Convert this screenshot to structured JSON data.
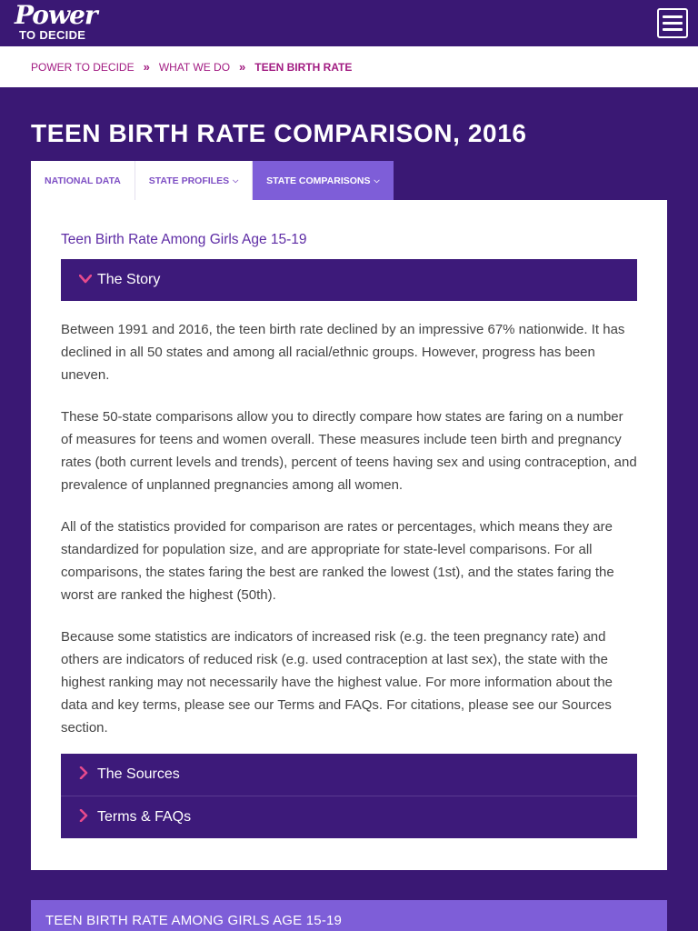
{
  "header": {
    "logo_power": "Power",
    "logo_to_decide": "TO DECIDE",
    "menu_icon": "hamburger-icon"
  },
  "breadcrumb": {
    "items": [
      "POWER TO DECIDE",
      "WHAT WE DO"
    ],
    "separator": "»",
    "current": "TEEN BIRTH RATE"
  },
  "page": {
    "title": "TEEN BIRTH RATE COMPARISON, 2016"
  },
  "tabs": [
    {
      "label": "NATIONAL DATA",
      "has_caret": false,
      "active": false
    },
    {
      "label": "STATE PROFILES",
      "has_caret": true,
      "active": false
    },
    {
      "label": "STATE COMPARISONS",
      "has_caret": true,
      "active": true
    }
  ],
  "content": {
    "subtitle": "Teen Birth Rate Among Girls Age 15-19",
    "accordion": [
      {
        "label": "The Story",
        "expanded": true
      },
      {
        "label": "The Sources",
        "expanded": false
      },
      {
        "label": "Terms & FAQs",
        "expanded": false
      }
    ],
    "story_paragraphs": [
      "Between 1991 and 2016, the teen birth rate declined by an impressive 67% nationwide. It has declined in all 50 states and among all racial/ethnic groups. However, progress has been uneven.",
      "These 50-state comparisons allow you to directly compare how states are faring on a number of measures for teens and women overall. These measures include teen birth and pregnancy rates (both current levels and trends), percent of teens having sex and using contraception, and prevalence of unplanned pregnancies among all women.",
      "All of the statistics provided for comparison are rates or percentages, which means they are standardized for population size, and are appropriate for state-level comparisons. For all comparisons, the states faring the best are ranked the lowest (1st), and the states faring the worst are ranked the highest (50th).",
      "Because some statistics are indicators of increased risk (e.g. the teen pregnancy rate) and others are indicators of reduced risk (e.g. used contraception at last sex), the state with the highest ranking may not necessarily have the highest value. For more information about the data and key terms, please see our Terms and FAQs. For citations, please see our Sources section."
    ]
  },
  "bottom_section": {
    "title": "TEEN BIRTH RATE AMONG GIRLS AGE 15-19"
  },
  "colors": {
    "background": "#3a1874",
    "accent_magenta": "#a21c82",
    "active_tab": "#7e5ed8",
    "accordion_bg": "#3d1a7a",
    "chevron": "#e64a8c"
  }
}
